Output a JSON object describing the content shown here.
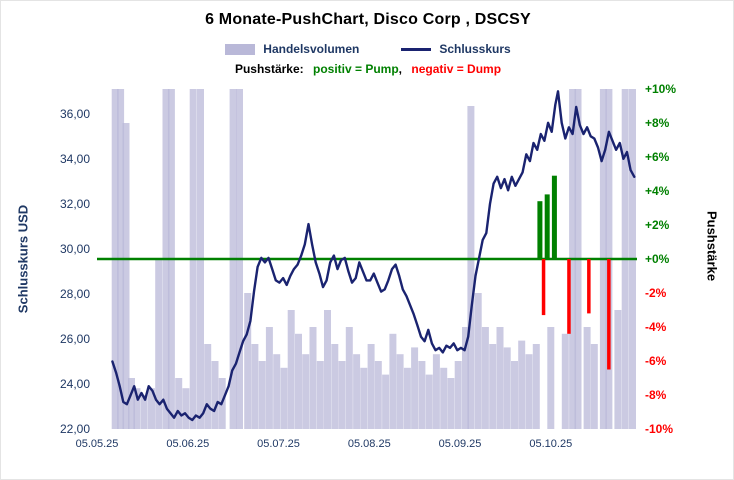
{
  "title": "6 Monate-PushChart,  Disco Corp , DSCSY",
  "legend": {
    "volume": "Handelsvolumen",
    "close": "Schlusskurs"
  },
  "subtitle": {
    "prefix": "Pushstärke:",
    "pump": "positiv = Pump",
    "comma": ",",
    "dump": "negativ = Dump"
  },
  "colors": {
    "volume": "#b9b8d8",
    "close_line": "#1a2370",
    "pump": "#008000",
    "dump": "#ff0000",
    "axis_text": "#1f3864"
  },
  "chart_data": {
    "type": "combo",
    "title": "6 Monate-PushChart, Disco Corp , DSCSY",
    "x_ticks": [
      {
        "t": 0,
        "label": "05.05.25"
      },
      {
        "t": 1,
        "label": "05.06.25"
      },
      {
        "t": 2,
        "label": "05.07.25"
      },
      {
        "t": 3,
        "label": "05.08.25"
      },
      {
        "t": 4,
        "label": "05.09.25"
      },
      {
        "t": 5,
        "label": "05.10.25"
      }
    ],
    "x_range": [
      0,
      5.95
    ],
    "left_axis": {
      "label": "Schlusskurs USD",
      "range": [
        22,
        37.1
      ],
      "ticks": [
        {
          "v": 36,
          "label": "36,00"
        },
        {
          "v": 34,
          "label": "34,00"
        },
        {
          "v": 32,
          "label": "32,00"
        },
        {
          "v": 30,
          "label": "30,00"
        },
        {
          "v": 28,
          "label": "28,00"
        },
        {
          "v": 26,
          "label": "26,00"
        },
        {
          "v": 24,
          "label": "24,00"
        },
        {
          "v": 22,
          "label": "22,00"
        }
      ]
    },
    "right_axis": {
      "label": "Pushstärke",
      "range": [
        -10,
        10
      ],
      "ticks": [
        {
          "v": 10,
          "label": "+10%"
        },
        {
          "v": 8,
          "label": "+8%"
        },
        {
          "v": 6,
          "label": "+6%"
        },
        {
          "v": 4,
          "label": "+4%"
        },
        {
          "v": 2,
          "label": "+2%"
        },
        {
          "v": 0,
          "label": "+0%"
        },
        {
          "v": -2,
          "label": "-2%"
        },
        {
          "v": -4,
          "label": "-4%"
        },
        {
          "v": -6,
          "label": "-6%"
        },
        {
          "v": -8,
          "label": "-8%"
        },
        {
          "v": -10,
          "label": "-10%"
        }
      ]
    },
    "zero_line": {
      "axis": "right",
      "value": 0
    },
    "series": [
      {
        "name": "Schlusskurs",
        "type": "line",
        "axis": "left",
        "points": [
          [
            0.17,
            25.0
          ],
          [
            0.21,
            24.5
          ],
          [
            0.25,
            23.9
          ],
          [
            0.29,
            23.2
          ],
          [
            0.33,
            23.1
          ],
          [
            0.37,
            23.5
          ],
          [
            0.41,
            23.9
          ],
          [
            0.45,
            23.3
          ],
          [
            0.49,
            23.6
          ],
          [
            0.53,
            23.3
          ],
          [
            0.57,
            23.9
          ],
          [
            0.61,
            23.7
          ],
          [
            0.65,
            23.3
          ],
          [
            0.69,
            23.1
          ],
          [
            0.73,
            23.3
          ],
          [
            0.77,
            22.9
          ],
          [
            0.81,
            22.7
          ],
          [
            0.85,
            22.5
          ],
          [
            0.89,
            22.8
          ],
          [
            0.93,
            22.6
          ],
          [
            0.97,
            22.7
          ],
          [
            1.01,
            22.5
          ],
          [
            1.05,
            22.4
          ],
          [
            1.09,
            22.6
          ],
          [
            1.13,
            22.5
          ],
          [
            1.17,
            22.7
          ],
          [
            1.21,
            23.1
          ],
          [
            1.25,
            22.9
          ],
          [
            1.29,
            22.8
          ],
          [
            1.33,
            23.2
          ],
          [
            1.37,
            23.1
          ],
          [
            1.41,
            23.5
          ],
          [
            1.45,
            23.9
          ],
          [
            1.49,
            24.6
          ],
          [
            1.53,
            24.9
          ],
          [
            1.57,
            25.4
          ],
          [
            1.61,
            25.9
          ],
          [
            1.65,
            26.2
          ],
          [
            1.69,
            26.8
          ],
          [
            1.73,
            28.1
          ],
          [
            1.77,
            29.2
          ],
          [
            1.81,
            29.6
          ],
          [
            1.85,
            29.4
          ],
          [
            1.89,
            29.6
          ],
          [
            1.93,
            29.1
          ],
          [
            1.97,
            28.6
          ],
          [
            2.01,
            28.5
          ],
          [
            2.05,
            28.7
          ],
          [
            2.09,
            28.4
          ],
          [
            2.13,
            28.8
          ],
          [
            2.17,
            29.1
          ],
          [
            2.21,
            29.3
          ],
          [
            2.25,
            29.7
          ],
          [
            2.29,
            30.2
          ],
          [
            2.33,
            31.1
          ],
          [
            2.37,
            30.2
          ],
          [
            2.41,
            29.4
          ],
          [
            2.45,
            28.9
          ],
          [
            2.49,
            28.3
          ],
          [
            2.53,
            28.6
          ],
          [
            2.57,
            29.4
          ],
          [
            2.61,
            29.7
          ],
          [
            2.65,
            29.1
          ],
          [
            2.69,
            29.5
          ],
          [
            2.73,
            29.6
          ],
          [
            2.77,
            29.0
          ],
          [
            2.81,
            28.5
          ],
          [
            2.85,
            28.7
          ],
          [
            2.89,
            29.4
          ],
          [
            2.93,
            29.0
          ],
          [
            2.97,
            28.6
          ],
          [
            3.01,
            28.6
          ],
          [
            3.05,
            28.9
          ],
          [
            3.09,
            28.5
          ],
          [
            3.13,
            28.1
          ],
          [
            3.17,
            28.2
          ],
          [
            3.21,
            28.6
          ],
          [
            3.25,
            29.1
          ],
          [
            3.29,
            29.3
          ],
          [
            3.33,
            28.8
          ],
          [
            3.37,
            28.2
          ],
          [
            3.41,
            27.9
          ],
          [
            3.45,
            27.5
          ],
          [
            3.49,
            27.1
          ],
          [
            3.53,
            26.6
          ],
          [
            3.57,
            26.1
          ],
          [
            3.61,
            25.9
          ],
          [
            3.65,
            26.4
          ],
          [
            3.69,
            25.8
          ],
          [
            3.73,
            25.5
          ],
          [
            3.77,
            25.6
          ],
          [
            3.81,
            25.4
          ],
          [
            3.85,
            25.7
          ],
          [
            3.89,
            25.6
          ],
          [
            3.93,
            25.8
          ],
          [
            3.97,
            25.5
          ],
          [
            4.01,
            25.6
          ],
          [
            4.05,
            25.5
          ],
          [
            4.09,
            26.1
          ],
          [
            4.13,
            27.5
          ],
          [
            4.17,
            28.8
          ],
          [
            4.21,
            29.6
          ],
          [
            4.25,
            30.4
          ],
          [
            4.29,
            30.7
          ],
          [
            4.33,
            32.0
          ],
          [
            4.37,
            32.9
          ],
          [
            4.41,
            33.2
          ],
          [
            4.45,
            32.7
          ],
          [
            4.49,
            33.1
          ],
          [
            4.53,
            32.6
          ],
          [
            4.57,
            33.2
          ],
          [
            4.61,
            32.8
          ],
          [
            4.65,
            33.1
          ],
          [
            4.69,
            33.4
          ],
          [
            4.73,
            34.2
          ],
          [
            4.77,
            33.9
          ],
          [
            4.81,
            34.7
          ],
          [
            4.85,
            34.4
          ],
          [
            4.89,
            35.1
          ],
          [
            4.93,
            34.8
          ],
          [
            4.97,
            35.6
          ],
          [
            5.01,
            35.2
          ],
          [
            5.05,
            36.4
          ],
          [
            5.08,
            37.0
          ],
          [
            5.12,
            35.6
          ],
          [
            5.16,
            34.9
          ],
          [
            5.2,
            35.4
          ],
          [
            5.24,
            35.1
          ],
          [
            5.28,
            36.3
          ],
          [
            5.32,
            35.5
          ],
          [
            5.36,
            35.1
          ],
          [
            5.4,
            35.4
          ],
          [
            5.44,
            35.0
          ],
          [
            5.48,
            34.9
          ],
          [
            5.52,
            34.5
          ],
          [
            5.56,
            33.9
          ],
          [
            5.6,
            34.4
          ],
          [
            5.64,
            35.2
          ],
          [
            5.68,
            34.8
          ],
          [
            5.72,
            34.4
          ],
          [
            5.76,
            34.7
          ],
          [
            5.8,
            34.0
          ],
          [
            5.84,
            34.3
          ],
          [
            5.88,
            33.5
          ],
          [
            5.92,
            33.2
          ]
        ]
      },
      {
        "name": "Handelsvolumen",
        "type": "bar",
        "axis": "volume-relative",
        "points": [
          [
            0.2,
            1.0
          ],
          [
            0.26,
            1.0
          ],
          [
            0.32,
            0.9
          ],
          [
            0.38,
            0.15
          ],
          [
            0.44,
            0.12
          ],
          [
            0.52,
            0.1
          ],
          [
            0.6,
            0.12
          ],
          [
            0.68,
            0.5
          ],
          [
            0.76,
            1.0
          ],
          [
            0.82,
            1.0
          ],
          [
            0.9,
            0.15
          ],
          [
            0.98,
            0.12
          ],
          [
            1.06,
            1.0
          ],
          [
            1.14,
            1.0
          ],
          [
            1.22,
            0.25
          ],
          [
            1.3,
            0.2
          ],
          [
            1.38,
            0.15
          ],
          [
            1.5,
            1.0
          ],
          [
            1.57,
            1.0
          ],
          [
            1.66,
            0.4
          ],
          [
            1.74,
            0.25
          ],
          [
            1.82,
            0.2
          ],
          [
            1.9,
            0.3
          ],
          [
            1.98,
            0.22
          ],
          [
            2.06,
            0.18
          ],
          [
            2.14,
            0.35
          ],
          [
            2.22,
            0.28
          ],
          [
            2.3,
            0.22
          ],
          [
            2.38,
            0.3
          ],
          [
            2.46,
            0.2
          ],
          [
            2.54,
            0.35
          ],
          [
            2.62,
            0.25
          ],
          [
            2.7,
            0.2
          ],
          [
            2.78,
            0.3
          ],
          [
            2.86,
            0.22
          ],
          [
            2.94,
            0.18
          ],
          [
            3.02,
            0.25
          ],
          [
            3.1,
            0.2
          ],
          [
            3.18,
            0.16
          ],
          [
            3.26,
            0.28
          ],
          [
            3.34,
            0.22
          ],
          [
            3.42,
            0.18
          ],
          [
            3.5,
            0.24
          ],
          [
            3.58,
            0.2
          ],
          [
            3.66,
            0.16
          ],
          [
            3.74,
            0.22
          ],
          [
            3.82,
            0.18
          ],
          [
            3.9,
            0.15
          ],
          [
            3.98,
            0.2
          ],
          [
            4.06,
            0.3
          ],
          [
            4.12,
            0.95
          ],
          [
            4.2,
            0.4
          ],
          [
            4.28,
            0.3
          ],
          [
            4.36,
            0.25
          ],
          [
            4.44,
            0.3
          ],
          [
            4.52,
            0.24
          ],
          [
            4.6,
            0.2
          ],
          [
            4.68,
            0.26
          ],
          [
            4.76,
            0.22
          ],
          [
            4.84,
            0.25
          ],
          [
            5.0,
            0.3
          ],
          [
            5.16,
            0.28
          ],
          [
            5.24,
            1.0
          ],
          [
            5.3,
            1.0
          ],
          [
            5.4,
            0.3
          ],
          [
            5.48,
            0.25
          ],
          [
            5.58,
            1.0
          ],
          [
            5.64,
            1.0
          ],
          [
            5.74,
            0.35
          ],
          [
            5.82,
            1.0
          ],
          [
            5.9,
            1.0
          ]
        ]
      },
      {
        "name": "Pushstärke positiv (Pump)",
        "type": "bar",
        "axis": "right",
        "points": [
          [
            4.88,
            3.4
          ],
          [
            4.96,
            3.8
          ],
          [
            5.04,
            4.9
          ]
        ]
      },
      {
        "name": "Pushstärke negativ (Dump)",
        "type": "bar",
        "axis": "right",
        "points": [
          [
            4.92,
            -3.3
          ],
          [
            5.2,
            -4.4
          ],
          [
            5.42,
            -3.2
          ],
          [
            5.64,
            -6.5
          ]
        ]
      }
    ]
  }
}
